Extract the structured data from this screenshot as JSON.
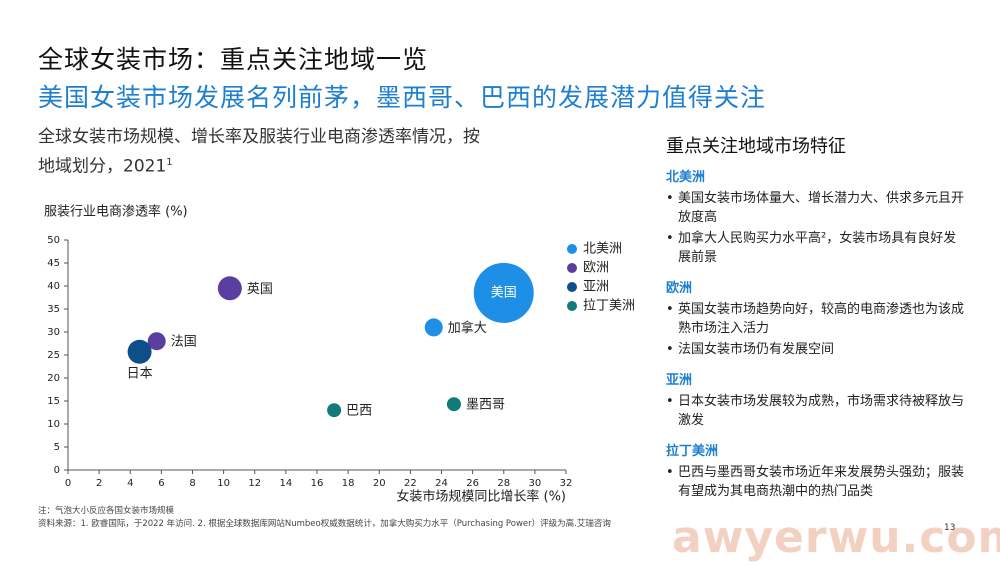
{
  "header": {
    "title": "全球女装市场：重点关注地域一览",
    "subtitle": "美国女装市场发展名列前茅，墨西哥、巴西的发展潜力值得关注"
  },
  "chart_desc": {
    "line1": "全球女装市场规模、增长率及服装行业电商渗透率情况，按",
    "line2": "地域划分，2021",
    "sup": "1"
  },
  "chart_data": {
    "type": "scatter",
    "title": "",
    "ylabel": "服装行业电商渗透率 (%)",
    "xlabel": "女装市场规模同比增长率 (%)",
    "xlim": [
      0,
      32
    ],
    "ylim": [
      0,
      50
    ],
    "x_ticks": [
      0,
      2,
      4,
      6,
      8,
      10,
      12,
      14,
      16,
      18,
      20,
      22,
      24,
      26,
      28,
      30,
      32
    ],
    "y_ticks": [
      0,
      5,
      10,
      15,
      20,
      25,
      30,
      35,
      40,
      45,
      50
    ],
    "grid": false,
    "legend_position": "right",
    "series": [
      {
        "name": "北美洲",
        "color": "#1e8fe6"
      },
      {
        "name": "欧洲",
        "color": "#5b3fa0"
      },
      {
        "name": "亚洲",
        "color": "#0e4f8a"
      },
      {
        "name": "拉丁美洲",
        "color": "#127a78"
      }
    ],
    "points": [
      {
        "label": "美国",
        "x": 28,
        "y": 38.5,
        "size": 30,
        "series": "北美洲",
        "label_pos": "inside"
      },
      {
        "label": "加拿大",
        "x": 23.5,
        "y": 31,
        "size": 9,
        "series": "北美洲",
        "label_pos": "right"
      },
      {
        "label": "英国",
        "x": 10.4,
        "y": 39.5,
        "size": 12,
        "series": "欧洲",
        "label_pos": "right"
      },
      {
        "label": "法国",
        "x": 5.7,
        "y": 28,
        "size": 9,
        "series": "欧洲",
        "label_pos": "right"
      },
      {
        "label": "日本",
        "x": 4.6,
        "y": 25.7,
        "size": 12,
        "series": "亚洲",
        "label_pos": "below"
      },
      {
        "label": "巴西",
        "x": 17.1,
        "y": 13,
        "size": 7,
        "series": "拉丁美洲",
        "label_pos": "right"
      },
      {
        "label": "墨西哥",
        "x": 24.8,
        "y": 14.3,
        "size": 7,
        "series": "拉丁美洲",
        "label_pos": "right"
      }
    ]
  },
  "notes": {
    "note1": "注：气泡大小反应各国女装市场规模",
    "note2": "资料来源：1. 欧睿国际，于2022 年访问. 2. 根据全球数据库网站Numbeo权威数据统计，加拿大购买力水平（Purchasing Power）评级为高.艾瑞咨询"
  },
  "side": {
    "title": "重点关注地域市场特征",
    "regions": [
      {
        "name": "北美洲",
        "bullets": [
          "美国女装市场体量大、增长潜力大、供求多元且开放度高",
          "加拿大人民购买力水平高²，女装市场具有良好发展前景"
        ]
      },
      {
        "name": "欧洲",
        "bullets": [
          "英国女装市场趋势向好，较高的电商渗透也为该成熟市场注入活力",
          "法国女装市场仍有发展空间"
        ]
      },
      {
        "name": "亚洲",
        "bullets": [
          "日本女装市场发展较为成熟，市场需求待被释放与激发"
        ]
      },
      {
        "name": "拉丁美洲",
        "bullets": [
          "巴西与墨西哥女装市场近年来发展势头强劲；服装有望成为其电商热潮中的热门品类"
        ]
      }
    ]
  },
  "watermark": "awyerwu.com",
  "page_number": "13"
}
